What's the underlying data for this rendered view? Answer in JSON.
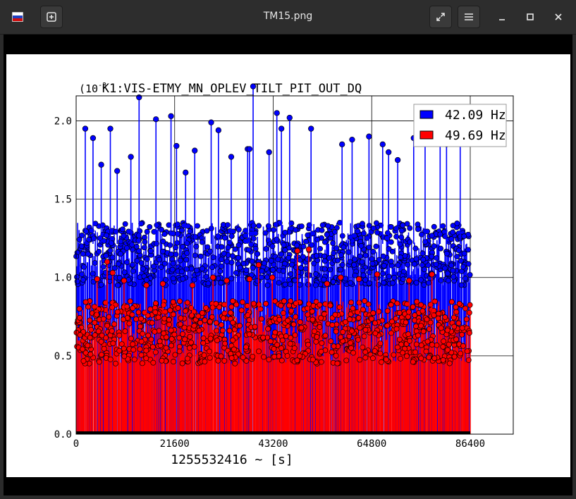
{
  "window": {
    "title": "TM15.png",
    "app_icon": "flag-icon",
    "new_tab_icon": "plus-icon",
    "fullscreen_icon": "expand-icon",
    "menu_icon": "hamburger-icon",
    "minimize_icon": "minimize-icon",
    "maximize_icon": "maximize-icon",
    "close_icon": "close-icon"
  },
  "colors": {
    "series_42": "#0000ff",
    "series_49": "#ff0000",
    "chrome": "#2d2d2d"
  },
  "chart_data": {
    "type": "scatter",
    "title": "K1:VIS-ETMY_MN_OPLEV_TILT_PIT_OUT_DQ",
    "multiplier": "(10",
    "multiplier_exp": "-3",
    "xlabel": "1255532416 ~ [s]",
    "ylabel": "",
    "xlim": [
      0,
      86400
    ],
    "ylim": [
      0,
      2.2
    ],
    "xticks": [
      0,
      21600,
      43200,
      64800,
      86400
    ],
    "xtick_labels": [
      "0",
      "21600",
      "43200",
      "64800",
      "86400"
    ],
    "yticks": [
      0,
      0.5,
      1.0,
      1.5,
      2.0
    ],
    "ytick_labels": [
      "0.0",
      "0.5",
      "1.0",
      "1.5",
      "2.0"
    ],
    "grid": true,
    "legend_position": "top-right",
    "series": [
      {
        "name": "42.09 Hz",
        "color": "#0000ff",
        "baseline_range": [
          0.95,
          1.35
        ],
        "peaks": [
          [
            2000,
            1.95
          ],
          [
            3700,
            1.89
          ],
          [
            5500,
            1.72
          ],
          [
            7500,
            1.95
          ],
          [
            9000,
            1.68
          ],
          [
            12000,
            1.77
          ],
          [
            13800,
            2.15
          ],
          [
            17500,
            2.01
          ],
          [
            20800,
            2.03
          ],
          [
            22000,
            1.84
          ],
          [
            24000,
            1.67
          ],
          [
            26000,
            1.81
          ],
          [
            29600,
            1.99
          ],
          [
            31200,
            1.94
          ],
          [
            34000,
            1.77
          ],
          [
            37600,
            1.82
          ],
          [
            38000,
            1.82
          ],
          [
            38800,
            2.22
          ],
          [
            42300,
            1.8
          ],
          [
            44000,
            2.05
          ],
          [
            45000,
            1.95
          ],
          [
            46800,
            2.02
          ],
          [
            51500,
            1.95
          ],
          [
            58300,
            1.85
          ],
          [
            60500,
            1.88
          ],
          [
            64200,
            1.9
          ],
          [
            67200,
            1.85
          ],
          [
            68500,
            1.8
          ],
          [
            70500,
            1.75
          ],
          [
            74000,
            1.89
          ],
          [
            76500,
            1.98
          ],
          [
            79800,
            1.9
          ],
          [
            81200,
            1.85
          ],
          [
            84200,
            1.95
          ]
        ]
      },
      {
        "name": "49.69 Hz",
        "color": "#ff0000",
        "baseline_range": [
          0.45,
          0.85
        ],
        "peaks": [
          [
            4600,
            0.99
          ],
          [
            6800,
            1.1
          ],
          [
            8000,
            1.03
          ],
          [
            10500,
            0.98
          ],
          [
            15400,
            0.95
          ],
          [
            19000,
            0.96
          ],
          [
            25500,
            0.95
          ],
          [
            30000,
            1.0
          ],
          [
            33000,
            0.98
          ],
          [
            38000,
            0.99
          ],
          [
            40000,
            1.08
          ],
          [
            43000,
            1.0
          ],
          [
            48500,
            1.17
          ],
          [
            51000,
            1.18
          ],
          [
            55000,
            0.96
          ],
          [
            58000,
            1.0
          ],
          [
            62000,
            0.99
          ],
          [
            66000,
            1.02
          ],
          [
            73000,
            0.98
          ],
          [
            78000,
            1.02
          ]
        ]
      }
    ]
  }
}
